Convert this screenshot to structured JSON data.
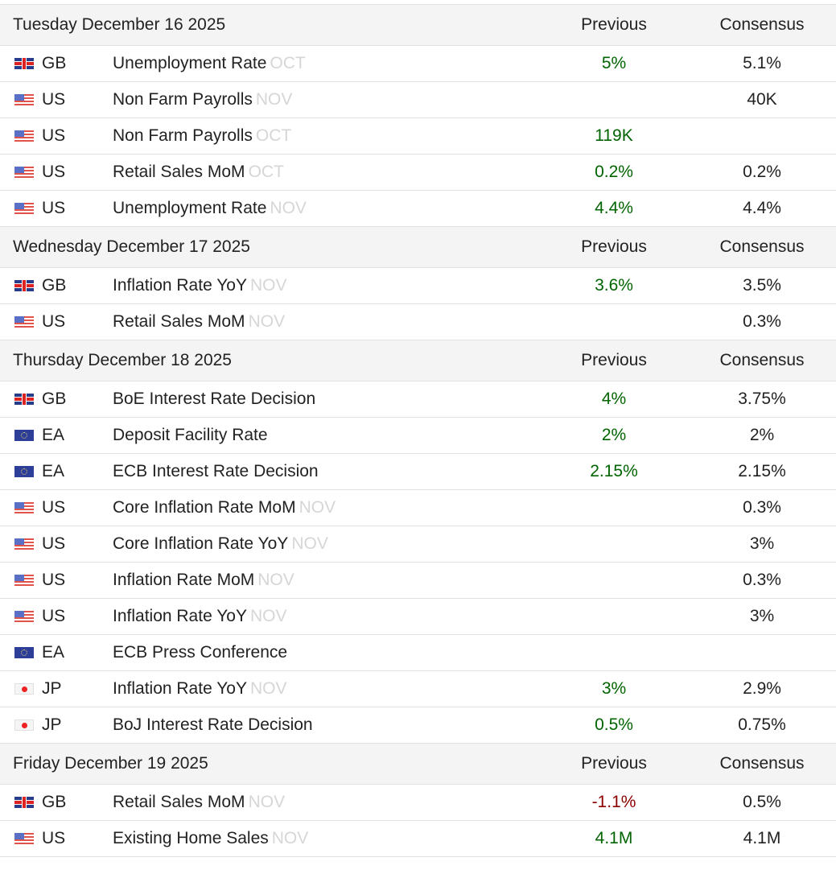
{
  "headers": {
    "previous": "Previous",
    "consensus": "Consensus"
  },
  "colors": {
    "positive": "#006400",
    "negative": "#8b0000",
    "reference": "#d6d6d6",
    "day_row_bg": "#f4f4f4",
    "border": "#dee2e6"
  },
  "days": [
    {
      "label": "Tuesday December 16 2025",
      "events": [
        {
          "flag": "gb-flag-icon",
          "country": "GB",
          "name": "Unemployment Rate",
          "ref": "OCT",
          "previous": "5%",
          "previous_color": "green",
          "consensus": "5.1%"
        },
        {
          "flag": "us-flag-icon",
          "country": "US",
          "name": "Non Farm Payrolls",
          "ref": "NOV",
          "previous": "",
          "previous_color": "green",
          "consensus": "40K"
        },
        {
          "flag": "us-flag-icon",
          "country": "US",
          "name": "Non Farm Payrolls",
          "ref": "OCT",
          "previous": "119K",
          "previous_color": "green",
          "consensus": ""
        },
        {
          "flag": "us-flag-icon",
          "country": "US",
          "name": "Retail Sales MoM",
          "ref": "OCT",
          "previous": "0.2%",
          "previous_color": "green",
          "consensus": "0.2%"
        },
        {
          "flag": "us-flag-icon",
          "country": "US",
          "name": "Unemployment Rate",
          "ref": "NOV",
          "previous": "4.4%",
          "previous_color": "green",
          "consensus": "4.4%"
        }
      ]
    },
    {
      "label": "Wednesday December 17 2025",
      "events": [
        {
          "flag": "gb-flag-icon",
          "country": "GB",
          "name": "Inflation Rate YoY",
          "ref": "NOV",
          "previous": "3.6%",
          "previous_color": "green",
          "consensus": "3.5%"
        },
        {
          "flag": "us-flag-icon",
          "country": "US",
          "name": "Retail Sales MoM",
          "ref": "NOV",
          "previous": "",
          "previous_color": "green",
          "consensus": "0.3%"
        }
      ]
    },
    {
      "label": "Thursday December 18 2025",
      "events": [
        {
          "flag": "gb-flag-icon",
          "country": "GB",
          "name": "BoE Interest Rate Decision",
          "ref": "",
          "previous": "4%",
          "previous_color": "green",
          "consensus": "3.75%"
        },
        {
          "flag": "ea-flag-icon",
          "country": "EA",
          "name": "Deposit Facility Rate",
          "ref": "",
          "previous": "2%",
          "previous_color": "green",
          "consensus": "2%"
        },
        {
          "flag": "ea-flag-icon",
          "country": "EA",
          "name": "ECB Interest Rate Decision",
          "ref": "",
          "previous": "2.15%",
          "previous_color": "green",
          "consensus": "2.15%"
        },
        {
          "flag": "us-flag-icon",
          "country": "US",
          "name": "Core Inflation Rate MoM",
          "ref": "NOV",
          "previous": "",
          "previous_color": "green",
          "consensus": "0.3%"
        },
        {
          "flag": "us-flag-icon",
          "country": "US",
          "name": "Core Inflation Rate YoY",
          "ref": "NOV",
          "previous": "",
          "previous_color": "green",
          "consensus": "3%"
        },
        {
          "flag": "us-flag-icon",
          "country": "US",
          "name": "Inflation Rate MoM",
          "ref": "NOV",
          "previous": "",
          "previous_color": "green",
          "consensus": "0.3%"
        },
        {
          "flag": "us-flag-icon",
          "country": "US",
          "name": "Inflation Rate YoY",
          "ref": "NOV",
          "previous": "",
          "previous_color": "green",
          "consensus": "3%"
        },
        {
          "flag": "ea-flag-icon",
          "country": "EA",
          "name": "ECB Press Conference",
          "ref": "",
          "previous": "",
          "previous_color": "green",
          "consensus": ""
        },
        {
          "flag": "jp-flag-icon",
          "country": "JP",
          "name": "Inflation Rate YoY",
          "ref": "NOV",
          "previous": "3%",
          "previous_color": "green",
          "consensus": "2.9%"
        },
        {
          "flag": "jp-flag-icon",
          "country": "JP",
          "name": "BoJ Interest Rate Decision",
          "ref": "",
          "previous": "0.5%",
          "previous_color": "green",
          "consensus": "0.75%"
        }
      ]
    },
    {
      "label": "Friday December 19 2025",
      "events": [
        {
          "flag": "gb-flag-icon",
          "country": "GB",
          "name": "Retail Sales MoM",
          "ref": "NOV",
          "previous": "-1.1%",
          "previous_color": "red",
          "consensus": "0.5%"
        },
        {
          "flag": "us-flag-icon",
          "country": "US",
          "name": "Existing Home Sales",
          "ref": "NOV",
          "previous": "4.1M",
          "previous_color": "green",
          "consensus": "4.1M"
        }
      ]
    }
  ]
}
